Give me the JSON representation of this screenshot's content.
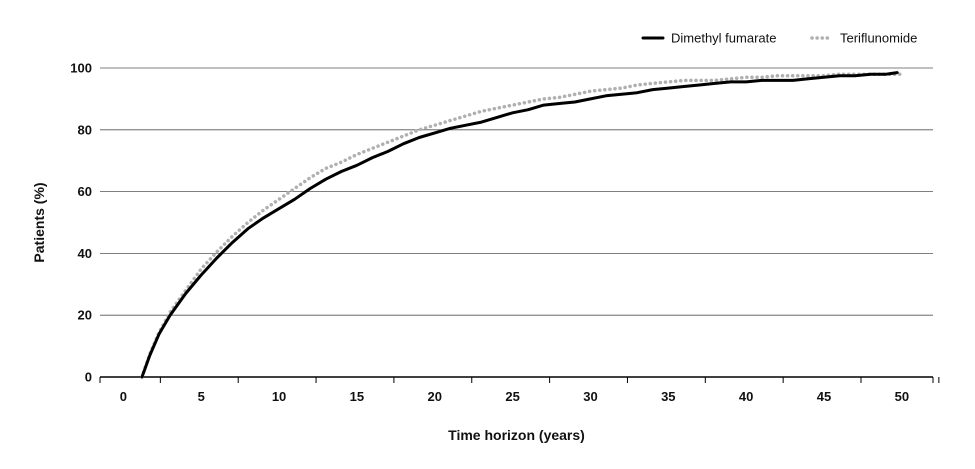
{
  "chart_data": {
    "type": "line",
    "title": "",
    "xlabel": "Time horizon (years)",
    "ylabel": "Patients (%)",
    "xlim": [
      -1.5,
      52
    ],
    "ylim": [
      0,
      100
    ],
    "xticks": [
      0,
      5,
      10,
      15,
      20,
      25,
      30,
      35,
      40,
      45,
      50
    ],
    "yticks": [
      0,
      20,
      40,
      60,
      80,
      100
    ],
    "grid": "horizontal",
    "legend": "top-right",
    "series": [
      {
        "name": "Dimethyl fumarate",
        "color": "#000000",
        "style": "solid",
        "x": [
          1.2,
          1.7,
          2.3,
          3.0,
          4.0,
          5.0,
          6.0,
          7.0,
          8.0,
          9.0,
          10.0,
          11.0,
          12.0,
          13.0,
          14.0,
          15.0,
          16.0,
          17.0,
          18.0,
          19.0,
          20.0,
          21.0,
          22.0,
          23.0,
          24.0,
          25.0,
          26.0,
          27.0,
          28.0,
          29.0,
          30.0,
          31.0,
          32.0,
          33.0,
          34.0,
          35.0,
          36.0,
          37.0,
          38.0,
          39.0,
          40.0,
          41.0,
          42.0,
          43.0,
          44.0,
          45.0,
          46.0,
          47.0,
          48.0,
          49.0,
          49.7
        ],
        "y": [
          0,
          7,
          14,
          20,
          27,
          33,
          38.5,
          43.5,
          48,
          51.5,
          54.5,
          57.5,
          61,
          64,
          66.5,
          68.5,
          71,
          73,
          75.5,
          77.5,
          79,
          80.5,
          81.5,
          82.5,
          84,
          85.5,
          86.5,
          88,
          88.5,
          89,
          90,
          91,
          91.5,
          92,
          93,
          93.5,
          94,
          94.5,
          95,
          95.5,
          95.5,
          96,
          96,
          96,
          96.5,
          97,
          97.5,
          97.5,
          98,
          98,
          98.5
        ]
      },
      {
        "name": "Teriflunomide",
        "color": "#b0b0b0",
        "style": "dotted",
        "x": [
          1.2,
          1.7,
          2.3,
          3.0,
          4.0,
          5.0,
          6.0,
          7.0,
          8.0,
          9.0,
          10.0,
          11.0,
          12.0,
          13.0,
          14.0,
          15.0,
          16.0,
          17.0,
          18.0,
          19.0,
          20.0,
          21.0,
          22.0,
          23.0,
          24.0,
          25.0,
          26.0,
          27.0,
          28.0,
          29.0,
          30.0,
          31.0,
          32.0,
          33.0,
          34.0,
          35.0,
          36.0,
          37.0,
          38.0,
          39.0,
          40.0,
          41.0,
          42.0,
          43.0,
          44.0,
          45.0,
          46.0,
          47.0,
          48.0,
          49.0,
          50.0
        ],
        "y": [
          0,
          7.5,
          14.5,
          21,
          28,
          35,
          40.5,
          45.5,
          50,
          54,
          57.5,
          61,
          64.5,
          67.5,
          69.5,
          72,
          74,
          76,
          78,
          80,
          81.5,
          83,
          84.5,
          86,
          87,
          88,
          89,
          90,
          90.5,
          91.5,
          92.5,
          93,
          93.5,
          94.5,
          95,
          95.5,
          96,
          96,
          96,
          96.5,
          97,
          97,
          97.5,
          97.5,
          97.5,
          97.5,
          98,
          98,
          98,
          98,
          98
        ]
      }
    ]
  }
}
